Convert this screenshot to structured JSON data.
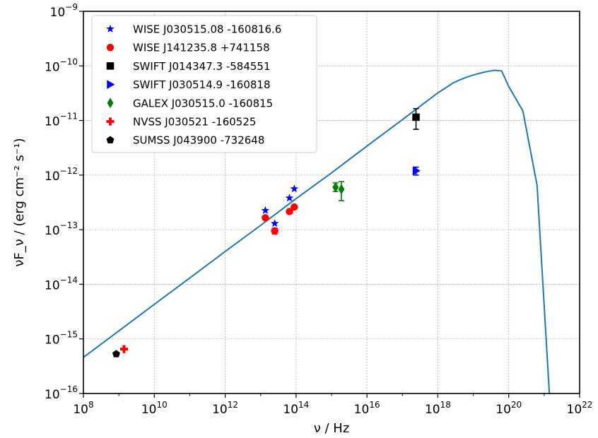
{
  "chart_data": {
    "type": "scatter",
    "title": "",
    "xlabel": "ν / Hz",
    "ylabel": "νF_ν / (erg cm⁻² s⁻¹)",
    "x_scale": "log",
    "y_scale": "log",
    "xlim": [
      100000000.0,
      1e+22
    ],
    "ylim": [
      1e-16,
      1e-09
    ],
    "grid": true,
    "legend_position": "top-left",
    "x_tick_labels": [
      {
        "base": "10",
        "exp": "8",
        "value": 100000000.0
      },
      {
        "base": "10",
        "exp": "10",
        "value": 10000000000.0
      },
      {
        "base": "10",
        "exp": "12",
        "value": 1000000000000.0
      },
      {
        "base": "10",
        "exp": "14",
        "value": 100000000000000.0
      },
      {
        "base": "10",
        "exp": "16",
        "value": 1e+16
      },
      {
        "base": "10",
        "exp": "18",
        "value": 1e+18
      },
      {
        "base": "10",
        "exp": "20",
        "value": 1e+20
      },
      {
        "base": "10",
        "exp": "22",
        "value": 1e+22
      }
    ],
    "y_tick_labels": [
      {
        "base": "10",
        "exp": "−16",
        "value": 1e-16
      },
      {
        "base": "10",
        "exp": "−15",
        "value": 1e-15
      },
      {
        "base": "10",
        "exp": "−14",
        "value": 1e-14
      },
      {
        "base": "10",
        "exp": "−13",
        "value": 1e-13
      },
      {
        "base": "10",
        "exp": "−12",
        "value": 1e-12
      },
      {
        "base": "10",
        "exp": "−11",
        "value": 1e-11
      },
      {
        "base": "10",
        "exp": "−10",
        "value": 1e-10
      },
      {
        "base": "10",
        "exp": "−9",
        "value": 1e-09
      }
    ],
    "model_curve": {
      "color": "#1f77b4",
      "points": [
        [
          100000000.0,
          4.6e-16
        ],
        [
          1000000000.0,
          1.4e-15
        ],
        [
          10000000000.0,
          4.3e-15
        ],
        [
          100000000000.0,
          1.3e-14
        ],
        [
          1000000000000.0,
          4e-14
        ],
        [
          10000000000000.0,
          1.2e-13
        ],
        [
          100000000000000.0,
          3.7e-13
        ],
        [
          1000000000000000.0,
          1.1e-12
        ],
        [
          1e+16,
          3.4e-12
        ],
        [
          1e+17,
          1.04e-11
        ],
        [
          1e+18,
          3.2e-11
        ],
        [
          1.6e+18,
          3.9e-11
        ],
        [
          2.6e+18,
          4.8e-11
        ],
        [
          4e+18,
          5.5e-11
        ],
        [
          6e+18,
          6.1e-11
        ],
        [
          1e+19,
          6.8e-11
        ],
        [
          1.6e+19,
          7.4e-11
        ],
        [
          2.5e+19,
          7.9e-11
        ],
        [
          4e+19,
          8.3e-11
        ],
        [
          6.3e+19,
          8.1e-11
        ],
        [
          1e+20,
          4.2e-11
        ],
        [
          2.5e+20,
          1.5e-11
        ],
        [
          6.3e+20,
          6.5e-13
        ],
        [
          1.4e+21,
          1e-16
        ]
      ]
    },
    "series": [
      {
        "name": "WISE J030515.08 -160816.6",
        "marker": "star",
        "color": "#0000ff",
        "points": [
          {
            "x": 13600000000000.0,
            "y": 2.25e-13
          },
          {
            "x": 25000000000000.0,
            "y": 1.3e-13
          },
          {
            "x": 65000000000000.0,
            "y": 3.8e-13
          },
          {
            "x": 89000000000000.0,
            "y": 5.6e-13
          }
        ]
      },
      {
        "name": "WISE J141235.8 +741158",
        "marker": "circle",
        "color": "#ff0000",
        "points": [
          {
            "x": 13600000000000.0,
            "y": 1.65e-13
          },
          {
            "x": 25000000000000.0,
            "y": 9.5e-14,
            "yerr": [
              8.3e-14,
              1.07e-13
            ]
          },
          {
            "x": 65000000000000.0,
            "y": 2.15e-13
          },
          {
            "x": 89000000000000.0,
            "y": 2.6e-13
          }
        ]
      },
      {
        "name": "SWIFT J014347.3 -584551",
        "marker": "square",
        "color": "#000000",
        "points": [
          {
            "x": 2.42e+17,
            "y": 1.15e-11,
            "yerr": [
              6.9e-12,
              1.65e-11
            ]
          }
        ]
      },
      {
        "name": "SWIFT J030514.9 -160818",
        "marker": "triangle-right",
        "color": "#0000ff",
        "points": [
          {
            "x": 2.42e+17,
            "y": 1.2e-12,
            "yerr": [
              1e-12,
              1.4e-12
            ]
          }
        ]
      },
      {
        "name": "GALEX J030515.0 -160815",
        "marker": "diamond",
        "color": "#008000",
        "points": [
          {
            "x": 1300000000000000.0,
            "y": 6e-13,
            "yerr": [
              5e-13,
              7.2e-13
            ]
          },
          {
            "x": 1900000000000000.0,
            "y": 5.5e-13,
            "yerr": [
              3.4e-13,
              7.6e-13
            ]
          }
        ]
      },
      {
        "name": "NVSS J030521 -160525",
        "marker": "plus",
        "color": "#ff0000",
        "points": [
          {
            "x": 1400000000.0,
            "y": 6.5e-16
          }
        ]
      },
      {
        "name": "SUMSS J043900 -732648",
        "marker": "pentagon",
        "color": "#000000",
        "points": [
          {
            "x": 843000000.0,
            "y": 5.3e-16
          }
        ]
      }
    ]
  }
}
